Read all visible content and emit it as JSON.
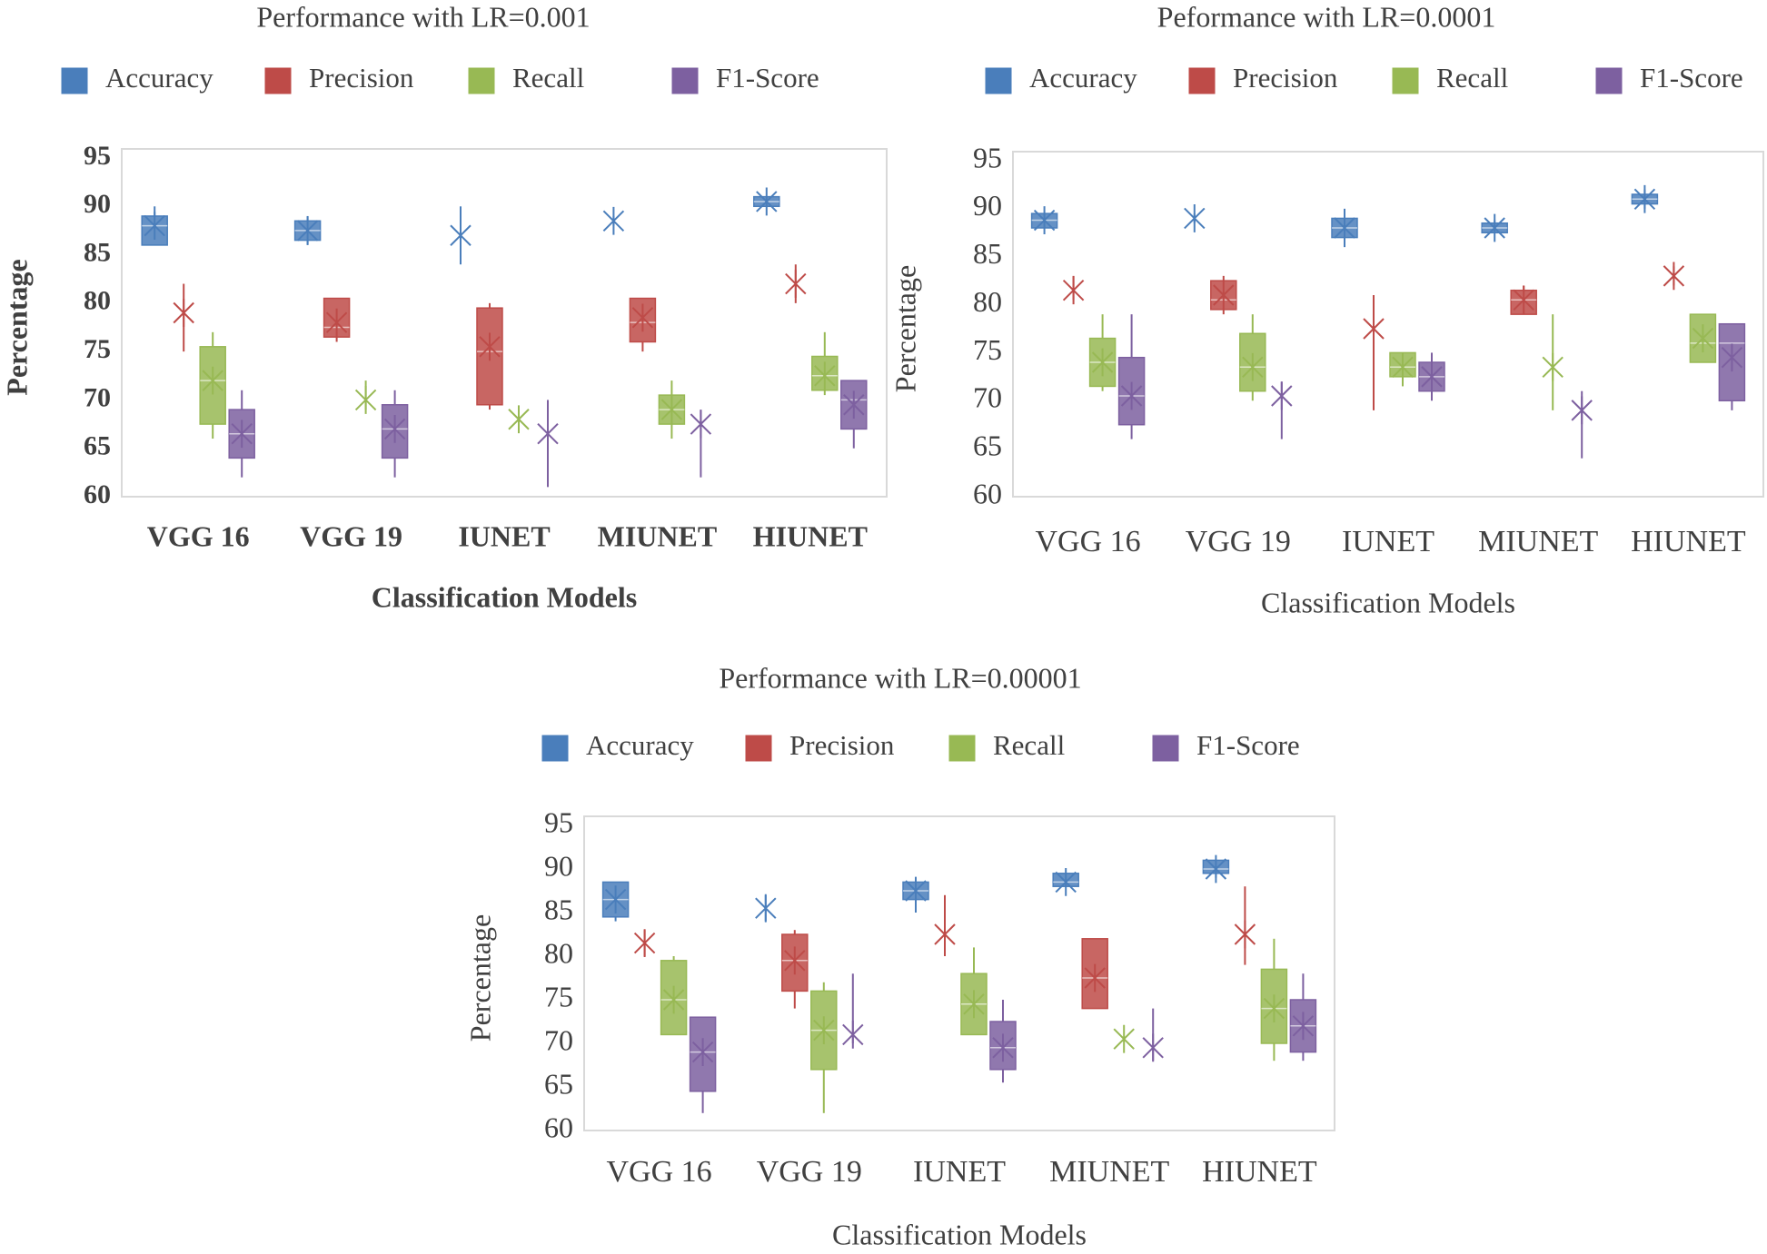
{
  "chart_data": [
    {
      "type": "box",
      "title": "Performance with LR=0.001",
      "xlabel": "Classification Models",
      "ylabel": "Percentage",
      "categories": [
        "VGG 16",
        "VGG 19",
        "IUNET",
        "MIUNET",
        "HIUNET"
      ],
      "ylim": [
        60,
        95
      ],
      "yticks": [
        60,
        65,
        70,
        75,
        80,
        85,
        90,
        95
      ],
      "series": [
        {
          "name": "Accuracy",
          "color": "#4a7ebb",
          "values": [
            {
              "min": 86,
              "q1": 86,
              "median": 88,
              "q3": 89,
              "max": 90,
              "mean": 88
            },
            {
              "min": 86,
              "q1": 86.5,
              "median": 87.5,
              "q3": 88.5,
              "max": 89,
              "mean": 87.5
            },
            {
              "min": 84,
              "q1": 87,
              "median": 87,
              "q3": 87,
              "max": 90,
              "mean": 87
            },
            {
              "min": 88,
              "q1": 88.5,
              "median": 88.5,
              "q3": 88.5,
              "max": 89,
              "mean": 88.5
            },
            {
              "min": 90,
              "q1": 90,
              "median": 90.5,
              "q3": 91,
              "max": 91,
              "mean": 90.5
            }
          ]
        },
        {
          "name": "Precision",
          "color": "#be4b48",
          "values": [
            {
              "min": 75,
              "q1": 79,
              "median": 79,
              "q3": 79,
              "max": 82,
              "mean": 79
            },
            {
              "min": 76,
              "q1": 76.5,
              "median": 77.5,
              "q3": 80.5,
              "max": 80.5,
              "mean": 78
            },
            {
              "min": 69,
              "q1": 69.5,
              "median": 75,
              "q3": 79.5,
              "max": 80,
              "mean": 75.5
            },
            {
              "min": 75,
              "q1": 76,
              "median": 78,
              "q3": 80.5,
              "max": 80.5,
              "mean": 78.5
            },
            {
              "min": 80,
              "q1": 82,
              "median": 82,
              "q3": 82,
              "max": 84,
              "mean": 82
            }
          ]
        },
        {
          "name": "Recall",
          "color": "#98b954",
          "values": [
            {
              "min": 66,
              "q1": 67.5,
              "median": 72,
              "q3": 75.5,
              "max": 77,
              "mean": 72
            },
            {
              "min": 69,
              "q1": 70,
              "median": 70,
              "q3": 70,
              "max": 72,
              "mean": 70
            },
            {
              "min": 67,
              "q1": 68,
              "median": 68,
              "q3": 68,
              "max": 69,
              "mean": 68
            },
            {
              "min": 66,
              "q1": 67.5,
              "median": 69,
              "q3": 70.5,
              "max": 72,
              "mean": 69
            },
            {
              "min": 70.5,
              "q1": 71,
              "median": 72.5,
              "q3": 74.5,
              "max": 77,
              "mean": 72.5
            }
          ]
        },
        {
          "name": "F1-Score",
          "color": "#7d60a0",
          "values": [
            {
              "min": 62,
              "q1": 64,
              "median": 66.5,
              "q3": 69,
              "max": 71,
              "mean": 66.5
            },
            {
              "min": 62,
              "q1": 64,
              "median": 67,
              "q3": 69.5,
              "max": 71,
              "mean": 67
            },
            {
              "min": 61,
              "q1": 66.5,
              "median": 66.5,
              "q3": 66.5,
              "max": 70,
              "mean": 66.5
            },
            {
              "min": 62,
              "q1": 67.5,
              "median": 67.5,
              "q3": 67.5,
              "max": 69,
              "mean": 67.5
            },
            {
              "min": 65,
              "q1": 67,
              "median": 70,
              "q3": 72,
              "max": 72,
              "mean": 69.5
            }
          ]
        }
      ]
    },
    {
      "type": "box",
      "title": "Peformance with LR=0.0001",
      "xlabel": "Classification Models",
      "ylabel": "Percentage",
      "categories": [
        "VGG 16",
        "VGG 19",
        "IUNET",
        "MIUNET",
        "HIUNET"
      ],
      "ylim": [
        60,
        95
      ],
      "yticks": [
        60,
        65,
        70,
        75,
        80,
        85,
        90,
        95
      ],
      "series": [
        {
          "name": "Accuracy",
          "color": "#4a7ebb",
          "values": [
            {
              "min": 88,
              "q1": 88,
              "median": 88.8,
              "q3": 89.5,
              "max": 89.5,
              "mean": 88.8
            },
            {
              "min": 88.5,
              "q1": 89,
              "median": 89,
              "q3": 89,
              "max": 89.5,
              "mean": 89
            },
            {
              "min": 86,
              "q1": 87,
              "median": 88,
              "q3": 89,
              "max": 90,
              "mean": 88
            },
            {
              "min": 87.5,
              "q1": 87.5,
              "median": 88,
              "q3": 88.5,
              "max": 88.8,
              "mean": 88
            },
            {
              "min": 90,
              "q1": 90.5,
              "median": 91,
              "q3": 91.5,
              "max": 92,
              "mean": 91
            }
          ]
        },
        {
          "name": "Precision",
          "color": "#be4b48",
          "values": [
            {
              "min": 80.5,
              "q1": 81.5,
              "median": 81.5,
              "q3": 81.5,
              "max": 83,
              "mean": 81.5
            },
            {
              "min": 79,
              "q1": 79.5,
              "median": 80.5,
              "q3": 82.5,
              "max": 83,
              "mean": 81
            },
            {
              "min": 69,
              "q1": 77.5,
              "median": 77.5,
              "q3": 77.5,
              "max": 81,
              "mean": 77.5
            },
            {
              "min": 79,
              "q1": 79,
              "median": 80.5,
              "q3": 81.5,
              "max": 82,
              "mean": 80.5
            },
            {
              "min": 82,
              "q1": 83,
              "median": 83,
              "q3": 83,
              "max": 84,
              "mean": 83
            }
          ]
        },
        {
          "name": "Recall",
          "color": "#98b954",
          "values": [
            {
              "min": 71,
              "q1": 71.5,
              "median": 74,
              "q3": 76.5,
              "max": 79,
              "mean": 74
            },
            {
              "min": 70,
              "q1": 71,
              "median": 73.5,
              "q3": 77,
              "max": 79,
              "mean": 73.5
            },
            {
              "min": 71.5,
              "q1": 72.5,
              "median": 73.5,
              "q3": 75,
              "max": 75,
              "mean": 73.5
            },
            {
              "min": 69,
              "q1": 73.5,
              "median": 73.5,
              "q3": 73.5,
              "max": 79,
              "mean": 73.5
            },
            {
              "min": 74,
              "q1": 74,
              "median": 76,
              "q3": 79,
              "max": 79,
              "mean": 76.5
            }
          ]
        },
        {
          "name": "F1-Score",
          "color": "#7d60a0",
          "values": [
            {
              "min": 66,
              "q1": 67.5,
              "median": 70.5,
              "q3": 74.5,
              "max": 79,
              "mean": 70.5
            },
            {
              "min": 66,
              "q1": 70.5,
              "median": 70.5,
              "q3": 70.5,
              "max": 72,
              "mean": 70.5
            },
            {
              "min": 70,
              "q1": 71,
              "median": 72.5,
              "q3": 74,
              "max": 75,
              "mean": 72.5
            },
            {
              "min": 64,
              "q1": 69,
              "median": 69,
              "q3": 69,
              "max": 71,
              "mean": 69
            },
            {
              "min": 69,
              "q1": 70,
              "median": 76,
              "q3": 78,
              "max": 78,
              "mean": 74.5
            }
          ]
        }
      ]
    },
    {
      "type": "box",
      "title": "Performance with LR=0.00001",
      "xlabel": "Classification Models",
      "ylabel": "Percentage",
      "categories": [
        "VGG 16",
        "VGG 19",
        "IUNET",
        "MIUNET",
        "HIUNET"
      ],
      "ylim": [
        60,
        95
      ],
      "yticks": [
        60,
        65,
        70,
        75,
        80,
        85,
        90,
        95
      ],
      "series": [
        {
          "name": "Accuracy",
          "color": "#4a7ebb",
          "values": [
            {
              "min": 84,
              "q1": 84.5,
              "median": 86.5,
              "q3": 88.5,
              "max": 88.5,
              "mean": 86.5
            },
            {
              "min": 84,
              "q1": 85.5,
              "median": 85.5,
              "q3": 85.5,
              "max": 87,
              "mean": 85.5
            },
            {
              "min": 85,
              "q1": 86.5,
              "median": 87.5,
              "q3": 88.5,
              "max": 88.5,
              "mean": 87.5
            },
            {
              "min": 88,
              "q1": 88,
              "median": 88.5,
              "q3": 89.5,
              "max": 89.5,
              "mean": 88.5
            },
            {
              "min": 89,
              "q1": 89.5,
              "median": 90,
              "q3": 91,
              "max": 91,
              "mean": 90
            }
          ]
        },
        {
          "name": "Precision",
          "color": "#be4b48",
          "values": [
            {
              "min": 80,
              "q1": 81.5,
              "median": 81.5,
              "q3": 81.5,
              "max": 83,
              "mean": 81.5
            },
            {
              "min": 74,
              "q1": 76,
              "median": 79.5,
              "q3": 82.5,
              "max": 83,
              "mean": 79.5
            },
            {
              "min": 80,
              "q1": 82.5,
              "median": 82.5,
              "q3": 82.5,
              "max": 87,
              "mean": 82.5
            },
            {
              "min": 74,
              "q1": 74,
              "median": 77.5,
              "q3": 82,
              "max": 82,
              "mean": 77.5
            },
            {
              "min": 79,
              "q1": 82.5,
              "median": 82.5,
              "q3": 82.5,
              "max": 88,
              "mean": 82.5
            }
          ]
        },
        {
          "name": "Recall",
          "color": "#98b954",
          "values": [
            {
              "min": 71,
              "q1": 71,
              "median": 75,
              "q3": 79.5,
              "max": 80,
              "mean": 75
            },
            {
              "min": 62,
              "q1": 67,
              "median": 71.5,
              "q3": 76,
              "max": 77,
              "mean": 71.5
            },
            {
              "min": 71,
              "q1": 71,
              "median": 74.5,
              "q3": 78,
              "max": 81,
              "mean": 74.5
            },
            {
              "min": 70.5,
              "q1": 70.5,
              "median": 70.5,
              "q3": 70.5,
              "max": 70.5,
              "mean": 70.5
            },
            {
              "min": 68,
              "q1": 70,
              "median": 74,
              "q3": 78.5,
              "max": 82,
              "mean": 74
            }
          ]
        },
        {
          "name": "F1-Score",
          "color": "#7d60a0",
          "values": [
            {
              "min": 62,
              "q1": 64.5,
              "median": 69,
              "q3": 73,
              "max": 73,
              "mean": 69
            },
            {
              "min": 70,
              "q1": 71,
              "median": 71,
              "q3": 71,
              "max": 78,
              "mean": 71
            },
            {
              "min": 65.5,
              "q1": 67,
              "median": 69.5,
              "q3": 72.5,
              "max": 75,
              "mean": 69.5
            },
            {
              "min": 68,
              "q1": 69.5,
              "median": 69.5,
              "q3": 69.5,
              "max": 74,
              "mean": 69.5
            },
            {
              "min": 68,
              "q1": 69,
              "median": 72,
              "q3": 75,
              "max": 78,
              "mean": 72
            }
          ]
        }
      ]
    }
  ]
}
